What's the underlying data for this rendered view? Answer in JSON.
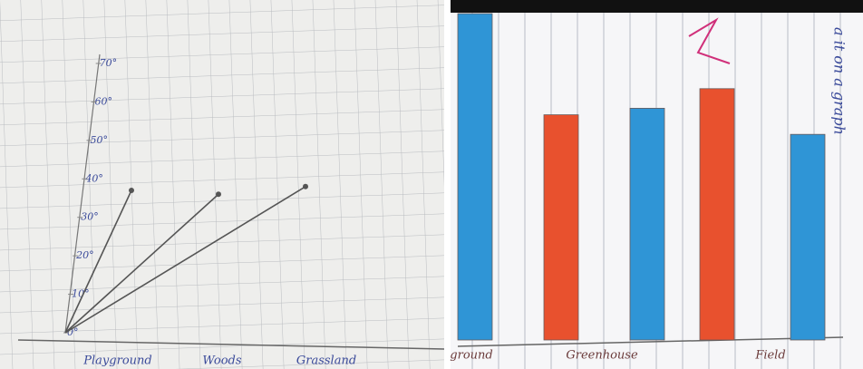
{
  "chart_data": [
    {
      "type": "ray",
      "categories": [
        "Playground",
        "Woods",
        "Grassland"
      ],
      "values": [
        37,
        36,
        38
      ],
      "color": "#555555",
      "ylim": [
        0,
        70
      ],
      "yticks": [
        {
          "value": 0,
          "label": "0°"
        },
        {
          "value": 10,
          "label": "10°"
        },
        {
          "value": 20,
          "label": "20°"
        },
        {
          "value": 30,
          "label": "30°"
        },
        {
          "value": 40,
          "label": "40°"
        },
        {
          "value": 50,
          "label": "50°"
        },
        {
          "value": 60,
          "label": "60°"
        },
        {
          "value": 70,
          "label": "70°"
        }
      ]
    },
    {
      "type": "bar",
      "categories": [
        "ground",
        "Greenhouse",
        null,
        "Field",
        null
      ],
      "values": [
        100,
        69,
        71,
        77,
        63
      ],
      "colors": [
        "#2f95d6",
        "#e8512e",
        "#2f95d6",
        "#e8512e",
        "#2f95d6"
      ],
      "ylim": [
        0,
        100
      ],
      "annotation": "a it on a graph"
    }
  ]
}
